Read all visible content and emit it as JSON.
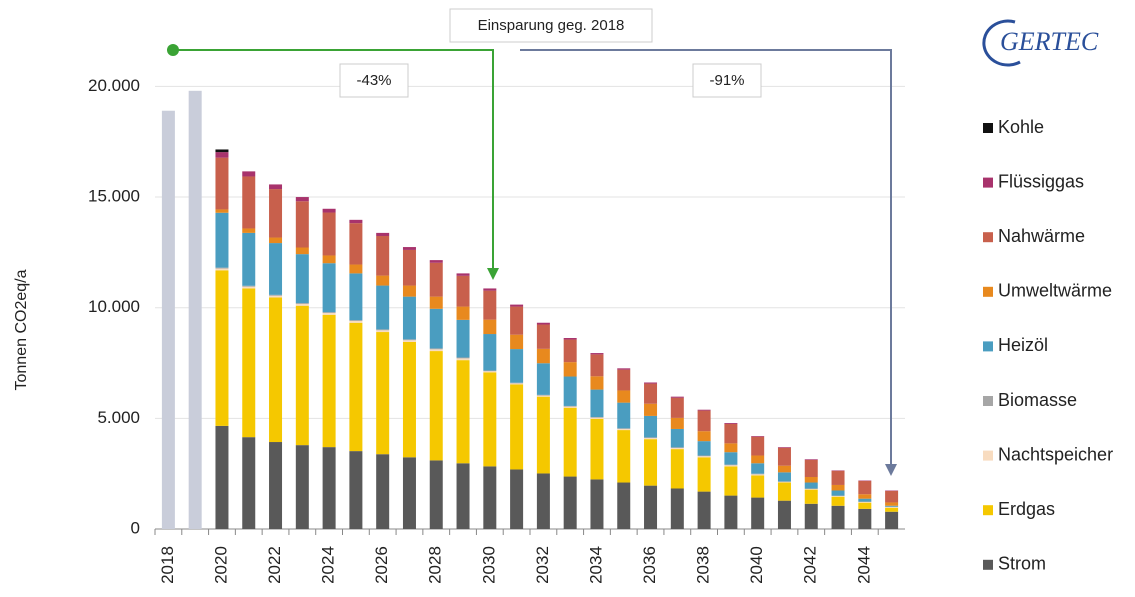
{
  "chart_data": {
    "type": "bar",
    "stacked": true,
    "logo": "GERTEC",
    "y_axis_label": "Tonnen CO2eq/a",
    "annotations": [
      "Einsparung geg. 2018",
      "-43%",
      "-91%"
    ],
    "categories": [
      "2018",
      null,
      "2020",
      null,
      "2022",
      null,
      "2024",
      null,
      "2026",
      null,
      "2028",
      null,
      "2030",
      null,
      "2032",
      null,
      "2034",
      null,
      "2036",
      null,
      "2038",
      null,
      "2040",
      null,
      "2042",
      null,
      "2044",
      null
    ],
    "ylim": [
      0,
      23000
    ],
    "yticks": [
      0,
      {
        "value": 5000,
        "label": "5.000"
      },
      {
        "value": 10000,
        "label": "10.000"
      },
      {
        "value": 15000,
        "label": "15.000"
      },
      {
        "value": 20000,
        "label": "20.000"
      }
    ],
    "grid": true,
    "legend": "right",
    "series": [
      {
        "color": "#c9cdda",
        "values": [
          18900,
          19800,
          null,
          null,
          null,
          null,
          null,
          null,
          null,
          null,
          null,
          null,
          null,
          null,
          null,
          null,
          null,
          null,
          null,
          null,
          null,
          null,
          null,
          null,
          null,
          null,
          null,
          null
        ]
      },
      {
        "name": "Strom",
        "color": "#595959",
        "values": [
          null,
          null,
          4660,
          4150,
          3930,
          3790,
          3700,
          3520,
          3380,
          3240,
          3100,
          2970,
          2830,
          2690,
          2510,
          2370,
          2240,
          2100,
          1960,
          1830,
          1690,
          1510,
          1420,
          1280,
          1140,
          1050,
          910,
          780
        ]
      },
      {
        "name": "Erdgas",
        "color": "#f5c800",
        "values": [
          null,
          null,
          7030,
          6720,
          6530,
          6300,
          5980,
          5800,
          5520,
          5210,
          4940,
          4660,
          4250,
          3840,
          3470,
          3110,
          2740,
          2370,
          2100,
          1780,
          1550,
          1320,
          1000,
          820,
          640,
          410,
          280,
          180
        ]
      },
      {
        "name": "Nachtspeicher",
        "color": "#f8dcc0",
        "values": [
          null,
          null,
          80,
          80,
          80,
          80,
          80,
          80,
          80,
          80,
          80,
          80,
          50,
          50,
          50,
          50,
          50,
          50,
          50,
          50,
          50,
          50,
          50,
          30,
          30,
          30,
          30,
          30
        ]
      },
      {
        "name": "Biomasse",
        "color": "#a6a6a6",
        "values": [
          null,
          null,
          40,
          40,
          40,
          40,
          40,
          40,
          40,
          40,
          40,
          40,
          30,
          30,
          30,
          30,
          30,
          30,
          30,
          30,
          30,
          30,
          30,
          20,
          20,
          20,
          20,
          20
        ]
      },
      {
        "name": "Heizöl",
        "color": "#4a9dc0",
        "values": [
          null,
          null,
          2480,
          2390,
          2340,
          2210,
          2210,
          2110,
          1980,
          1930,
          1790,
          1700,
          1650,
          1520,
          1430,
          1330,
          1240,
          1160,
          970,
          830,
          650,
          560,
          470,
          410,
          270,
          230,
          130,
          40
        ]
      },
      {
        "name": "Umweltwärme",
        "color": "#e8891e",
        "values": [
          null,
          null,
          150,
          200,
          250,
          300,
          350,
          400,
          450,
          500,
          550,
          600,
          650,
          650,
          650,
          650,
          600,
          550,
          550,
          500,
          450,
          400,
          350,
          300,
          250,
          250,
          200,
          150
        ]
      },
      {
        "name": "Nahwärme",
        "color": "#c8604c",
        "values": [
          null,
          null,
          2340,
          2350,
          2190,
          2090,
          1940,
          1870,
          1790,
          1610,
          1530,
          1390,
          1310,
          1270,
          1100,
          1020,
          990,
          940,
          910,
          910,
          930,
          880,
          850,
          810,
          770,
          640,
          600,
          520
        ]
      },
      {
        "name": "Flüssiggas",
        "color": "#a8336c",
        "values": [
          null,
          null,
          250,
          230,
          210,
          190,
          170,
          150,
          140,
          130,
          120,
          110,
          100,
          90,
          80,
          70,
          60,
          60,
          50,
          50,
          40,
          40,
          30,
          30,
          30,
          20,
          20,
          20
        ]
      },
      {
        "name": "Kohle",
        "color": "#111111",
        "values": [
          null,
          null,
          120,
          null,
          null,
          null,
          null,
          null,
          null,
          null,
          null,
          null,
          null,
          null,
          null,
          null,
          null,
          null,
          null,
          null,
          null,
          null,
          null,
          null,
          null,
          null,
          null,
          null
        ]
      }
    ]
  }
}
